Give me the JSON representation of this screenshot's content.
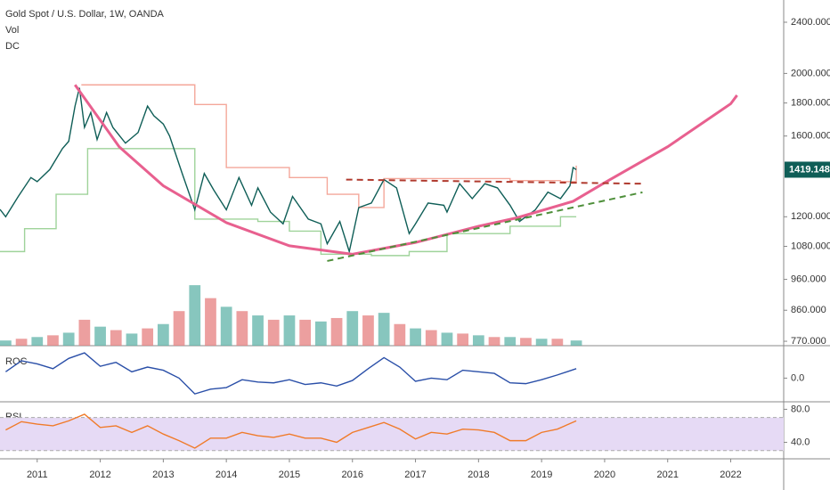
{
  "chart_data": [
    {
      "type": "line",
      "title": "Gold Spot / U.S. Dollar, 1W, OANDA",
      "labels": [
        "Vol",
        "DC"
      ],
      "log": true,
      "xlim": [
        2010.41,
        2022.84
      ],
      "xticks": [
        2011,
        2012,
        2013,
        2014,
        2015,
        2016,
        2017,
        2018,
        2019,
        2020,
        2021,
        2022
      ],
      "ylim": [
        758,
        2598
      ],
      "yticks": [
        {
          "value": 770,
          "label": "770.000"
        },
        {
          "value": 860,
          "label": "860.000"
        },
        {
          "value": 960,
          "label": "960.000"
        },
        {
          "value": 1080,
          "label": "1080.000"
        },
        {
          "value": 1200,
          "label": "1200.000"
        },
        {
          "value": 1600,
          "label": "1600.000"
        },
        {
          "value": 1800,
          "label": "1800.000"
        },
        {
          "value": 2000,
          "label": "2000.000"
        },
        {
          "value": 2400,
          "label": "2400.000"
        }
      ],
      "series": [
        {
          "color": "#0f5e57",
          "x": [
            2010.41,
            2010.5,
            2010.7,
            2010.9,
            2011.0,
            2011.2,
            2011.4,
            2011.5,
            2011.6,
            2011.67,
            2011.75,
            2011.85,
            2011.95,
            2012.1,
            2012.2,
            2012.4,
            2012.6,
            2012.75,
            2012.85,
            2013.0,
            2013.1,
            2013.3,
            2013.5,
            2013.65,
            2013.8,
            2014.0,
            2014.2,
            2014.4,
            2014.5,
            2014.7,
            2014.9,
            2015.05,
            2015.3,
            2015.5,
            2015.6,
            2015.8,
            2015.95,
            2016.1,
            2016.3,
            2016.5,
            2016.7,
            2016.9,
            2017.0,
            2017.2,
            2017.45,
            2017.5,
            2017.7,
            2017.9,
            2018.1,
            2018.3,
            2018.5,
            2018.65,
            2018.9,
            2019.1,
            2019.3,
            2019.45,
            2019.5,
            2019.55
          ],
          "values": [
            1232,
            1200,
            1290,
            1380,
            1360,
            1420,
            1530,
            1570,
            1780,
            1900,
            1650,
            1740,
            1580,
            1740,
            1650,
            1560,
            1620,
            1780,
            1720,
            1670,
            1600,
            1400,
            1230,
            1400,
            1320,
            1230,
            1380,
            1250,
            1330,
            1220,
            1170,
            1290,
            1190,
            1170,
            1090,
            1180,
            1060,
            1240,
            1260,
            1370,
            1330,
            1130,
            1170,
            1260,
            1250,
            1220,
            1350,
            1280,
            1350,
            1330,
            1250,
            1180,
            1230,
            1310,
            1280,
            1340,
            1430,
            1419.148
          ]
        }
      ],
      "channel": {
        "upper_color": "#f4a79a",
        "lower_color": "#9fd39a",
        "upper": {
          "x": [
            2011.7,
            2012.9,
            2013.5,
            2014.0,
            2015.0,
            2015.6,
            2016.1,
            2016.5,
            2017.5,
            2018.5,
            2019.3,
            2019.55
          ],
          "values": [
            1920,
            1920,
            1790,
            1430,
            1380,
            1300,
            1240,
            1375,
            1375,
            1365,
            1360,
            1440
          ]
        },
        "lower": {
          "x": [
            2010.41,
            2010.8,
            2011.3,
            2011.8,
            2012.5,
            2013.3,
            2013.5,
            2014.5,
            2015.0,
            2015.5,
            2016.0,
            2016.3,
            2016.9,
            2017.5,
            2018.5,
            2019.0,
            2019.3,
            2019.55
          ],
          "values": [
            1060,
            1150,
            1300,
            1530,
            1530,
            1530,
            1190,
            1180,
            1140,
            1050,
            1050,
            1045,
            1060,
            1130,
            1160,
            1160,
            1200,
            1200
          ]
        }
      },
      "trendlines": [
        {
          "color": "#e8608f",
          "dash": false,
          "x": [
            2011.6,
            2012.3,
            2013.0,
            2014.0,
            2015.0,
            2016.0,
            2017.0,
            2018.0,
            2018.6,
            2019.5,
            2020.0,
            2021.0,
            2022.0,
            2022.1
          ],
          "values": [
            1920,
            1540,
            1340,
            1175,
            1082,
            1050,
            1095,
            1160,
            1195,
            1268,
            1355,
            1540,
            1795,
            1850
          ]
        },
        {
          "color": "#b03a2e",
          "dash": true,
          "x": [
            2015.9,
            2020.6
          ],
          "values": [
            1370,
            1350
          ]
        },
        {
          "color": "#4e8f3a",
          "dash": true,
          "x": [
            2015.6,
            2020.6
          ],
          "values": [
            1025,
            1309
          ]
        }
      ],
      "volume": {
        "y2lim": [
          0,
          400
        ],
        "x": [
          2010.5,
          2010.75,
          2011.0,
          2011.25,
          2011.5,
          2011.75,
          2012.0,
          2012.25,
          2012.5,
          2012.75,
          2013.0,
          2013.25,
          2013.5,
          2013.75,
          2014.0,
          2014.25,
          2014.5,
          2014.75,
          2015.0,
          2015.25,
          2015.5,
          2015.75,
          2016.0,
          2016.25,
          2016.5,
          2016.75,
          2017.0,
          2017.25,
          2017.5,
          2017.75,
          2018.0,
          2018.25,
          2018.5,
          2018.75,
          2019.0,
          2019.25,
          2019.55
        ],
        "values": [
          6,
          8,
          10,
          12,
          15,
          30,
          22,
          18,
          14,
          20,
          25,
          40,
          70,
          55,
          45,
          40,
          35,
          30,
          35,
          30,
          28,
          32,
          40,
          35,
          38,
          25,
          20,
          18,
          15,
          14,
          12,
          10,
          10,
          9,
          8,
          8,
          6
        ],
        "colors": [
          "#5fb3a8",
          "#e57f7f"
        ]
      }
    },
    {
      "type": "line",
      "title": "ROC",
      "ylim": [
        -30,
        40
      ],
      "yticks": [
        {
          "value": 0,
          "label": "0.0"
        }
      ],
      "series": [
        {
          "color": "#2a4fa8",
          "x": [
            2010.5,
            2010.75,
            2011.0,
            2011.25,
            2011.5,
            2011.75,
            2012.0,
            2012.25,
            2012.5,
            2012.75,
            2013.0,
            2013.25,
            2013.5,
            2013.75,
            2014.0,
            2014.25,
            2014.5,
            2014.75,
            2015.0,
            2015.25,
            2015.5,
            2015.75,
            2016.0,
            2016.25,
            2016.5,
            2016.75,
            2017.0,
            2017.25,
            2017.5,
            2017.75,
            2018.0,
            2018.25,
            2018.5,
            2018.75,
            2019.0,
            2019.25,
            2019.55
          ],
          "values": [
            8,
            22,
            18,
            12,
            25,
            32,
            15,
            20,
            8,
            14,
            10,
            0,
            -20,
            -14,
            -12,
            -2,
            -5,
            -6,
            -2,
            -8,
            -6,
            -10,
            -3,
            12,
            26,
            14,
            -4,
            0,
            -2,
            10,
            8,
            6,
            -6,
            -7,
            -2,
            4,
            12
          ]
        }
      ]
    },
    {
      "type": "line",
      "title": "RSI",
      "ylim": [
        20,
        88
      ],
      "yticks": [
        {
          "value": 40,
          "label": "40.0"
        },
        {
          "value": 80,
          "label": "80.0"
        }
      ],
      "band": [
        30,
        70
      ],
      "band_color": "#e6daf5",
      "series": [
        {
          "color": "#f07b2a",
          "x": [
            2010.5,
            2010.75,
            2011.0,
            2011.25,
            2011.5,
            2011.75,
            2012.0,
            2012.25,
            2012.5,
            2012.75,
            2013.0,
            2013.25,
            2013.5,
            2013.75,
            2014.0,
            2014.25,
            2014.5,
            2014.75,
            2015.0,
            2015.25,
            2015.5,
            2015.75,
            2016.0,
            2016.25,
            2016.5,
            2016.75,
            2017.0,
            2017.25,
            2017.5,
            2017.75,
            2018.0,
            2018.25,
            2018.5,
            2018.75,
            2019.0,
            2019.25,
            2019.55
          ],
          "values": [
            55,
            65,
            62,
            60,
            66,
            74,
            58,
            60,
            52,
            60,
            50,
            42,
            33,
            45,
            45,
            52,
            48,
            46,
            50,
            45,
            45,
            40,
            52,
            58,
            64,
            56,
            44,
            52,
            50,
            56,
            55,
            52,
            42,
            42,
            52,
            56,
            66
          ]
        }
      ]
    }
  ]
}
